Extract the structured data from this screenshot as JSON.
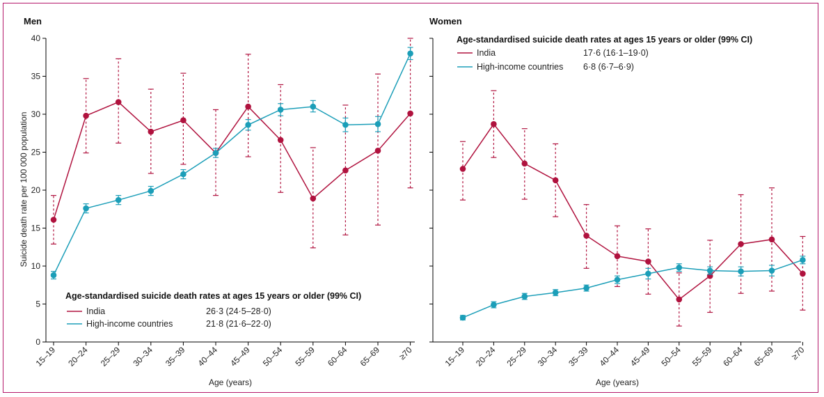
{
  "chart_data": [
    {
      "type": "line",
      "title": "Men",
      "xlabel": "Age (years)",
      "ylabel": "Suicide death rate per 100 000 population",
      "ylim": [
        0,
        40
      ],
      "yticks": [
        "0",
        "5",
        "10",
        "15",
        "20",
        "25",
        "30",
        "35",
        "40"
      ],
      "categories": [
        "15–19",
        "20–24",
        "25–29",
        "30–34",
        "35–39",
        "40–44",
        "45–49",
        "50–54",
        "55–59",
        "60–64",
        "65–69",
        "≥70"
      ],
      "legend": {
        "title": "Age-standardised suicide death rates at ages 15 years or older (99% CI)",
        "placement": "bottom-left",
        "entries": [
          {
            "name": "India",
            "value": "26·3 (24·5–28·0)"
          },
          {
            "name": "High-income countries",
            "value": "21·8 (21·6–22·0)"
          }
        ]
      },
      "series": [
        {
          "name": "India",
          "color": "#b0123e",
          "values": [
            16.1,
            29.8,
            31.6,
            27.7,
            29.2,
            24.9,
            31.0,
            26.6,
            18.9,
            22.6,
            25.2,
            30.1
          ],
          "lower": [
            12.9,
            24.9,
            26.2,
            22.2,
            23.4,
            19.3,
            24.4,
            19.7,
            12.4,
            14.1,
            15.4,
            20.3
          ],
          "upper": [
            19.3,
            34.7,
            37.3,
            33.3,
            35.4,
            30.6,
            37.9,
            33.9,
            25.6,
            31.2,
            35.3,
            40.0
          ]
        },
        {
          "name": "High-income countries",
          "color": "#1b9eb8",
          "values": [
            8.8,
            17.6,
            18.7,
            19.9,
            22.1,
            24.9,
            28.6,
            30.6,
            31.0,
            28.6,
            28.7,
            38.0
          ],
          "lower": [
            8.3,
            17.0,
            18.1,
            19.3,
            21.5,
            24.3,
            27.9,
            29.8,
            30.3,
            27.7,
            27.7,
            37.2
          ],
          "upper": [
            9.3,
            18.2,
            19.3,
            20.5,
            22.7,
            25.5,
            29.3,
            31.4,
            31.8,
            29.5,
            29.7,
            38.8
          ]
        }
      ]
    },
    {
      "type": "line",
      "title": "Women",
      "xlabel": "Age (years)",
      "ylabel": "",
      "ylim": [
        0,
        40
      ],
      "categories": [
        "15–19",
        "20–24",
        "25–29",
        "30–34",
        "35–39",
        "40–44",
        "45–49",
        "50–54",
        "55–59",
        "60–64",
        "65–69",
        "≥70"
      ],
      "legend": {
        "title": "Age-standardised suicide death rates at ages 15 years or older (99% CI)",
        "placement": "top-left",
        "entries": [
          {
            "name": "India",
            "value": "17·6 (16·1–19·0)"
          },
          {
            "name": "High-income countries",
            "value": "6·8 (6·7–6·9)"
          }
        ]
      },
      "series": [
        {
          "name": "India",
          "color": "#b0123e",
          "values": [
            22.8,
            28.7,
            23.5,
            21.3,
            14.0,
            11.3,
            10.6,
            5.6,
            8.7,
            12.9,
            13.5,
            9.0
          ],
          "lower": [
            18.7,
            24.3,
            18.8,
            16.5,
            9.7,
            7.3,
            6.3,
            2.1,
            3.9,
            6.4,
            6.7,
            4.2
          ],
          "upper": [
            26.4,
            33.1,
            28.1,
            26.1,
            18.1,
            15.3,
            14.9,
            9.1,
            13.4,
            19.4,
            20.3,
            13.9
          ]
        },
        {
          "name": "High-income countries",
          "color": "#1b9eb8",
          "values": [
            3.2,
            4.9,
            6.0,
            6.5,
            7.1,
            8.2,
            9.0,
            9.8,
            9.4,
            9.3,
            9.4,
            10.8
          ],
          "lower": [
            2.9,
            4.5,
            5.6,
            6.1,
            6.7,
            7.7,
            8.3,
            9.3,
            8.9,
            8.7,
            8.7,
            10.3
          ],
          "upper": [
            3.5,
            5.3,
            6.4,
            6.9,
            7.5,
            8.7,
            9.7,
            10.3,
            9.9,
            9.9,
            10.1,
            11.3
          ]
        }
      ]
    }
  ]
}
